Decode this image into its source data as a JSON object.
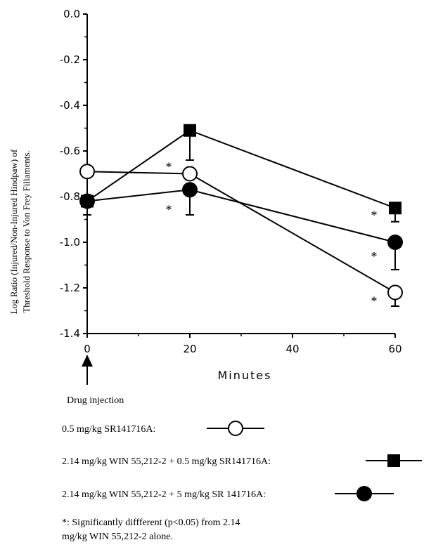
{
  "chart_data": {
    "type": "line",
    "x": [
      0,
      20,
      60
    ],
    "xlabel": "Minutes",
    "ylabel_lines": [
      "Log Ratio (Injured/Non-Injured Hindpaw) of",
      "Threshold Response to Von Frey Fillaments."
    ],
    "xlim": [
      0,
      60
    ],
    "ylim": [
      -1.4,
      0.0
    ],
    "xticks": [
      0,
      20,
      40,
      60
    ],
    "yticks": [
      0.0,
      -0.2,
      -0.4,
      -0.6,
      -0.8,
      -1.0,
      -1.2,
      -1.4
    ],
    "ytick_labels": [
      "0.0",
      "-0.2",
      "-0.4",
      "-0.6",
      "-0.8",
      "-1.0",
      "-1.2",
      "-1.4"
    ],
    "grid": false,
    "series": [
      {
        "name": "0.5 mg/kg SR141716A:",
        "marker": "open-circle",
        "values": [
          -0.69,
          -0.7,
          -1.22
        ],
        "error": [
          0.0,
          0.0,
          0.06
        ],
        "significant": [
          false,
          true,
          true
        ]
      },
      {
        "name": "2.14 mg/kg WIN 55,212-2 + 0.5 mg/kg SR141716A:",
        "marker": "filled-square",
        "values": [
          -0.82,
          -0.51,
          -0.85
        ],
        "error": [
          0.0,
          0.13,
          0.06
        ],
        "significant": [
          false,
          false,
          true
        ]
      },
      {
        "name": "2.14 mg/kg WIN 55,212-2 + 5 mg/kg SR 141716A:",
        "marker": "filled-circle",
        "values": [
          -0.82,
          -0.77,
          -1.0
        ],
        "error": [
          0.06,
          0.11,
          0.12
        ],
        "significant": [
          false,
          true,
          true
        ]
      }
    ],
    "annotations": {
      "injection_label": "Drug injection",
      "significance_note_lines": [
        "*:  Significantly diffferent (p<0.05) from 2.14",
        "mg/kg WIN 55,212-2  alone."
      ],
      "star": "*"
    }
  }
}
